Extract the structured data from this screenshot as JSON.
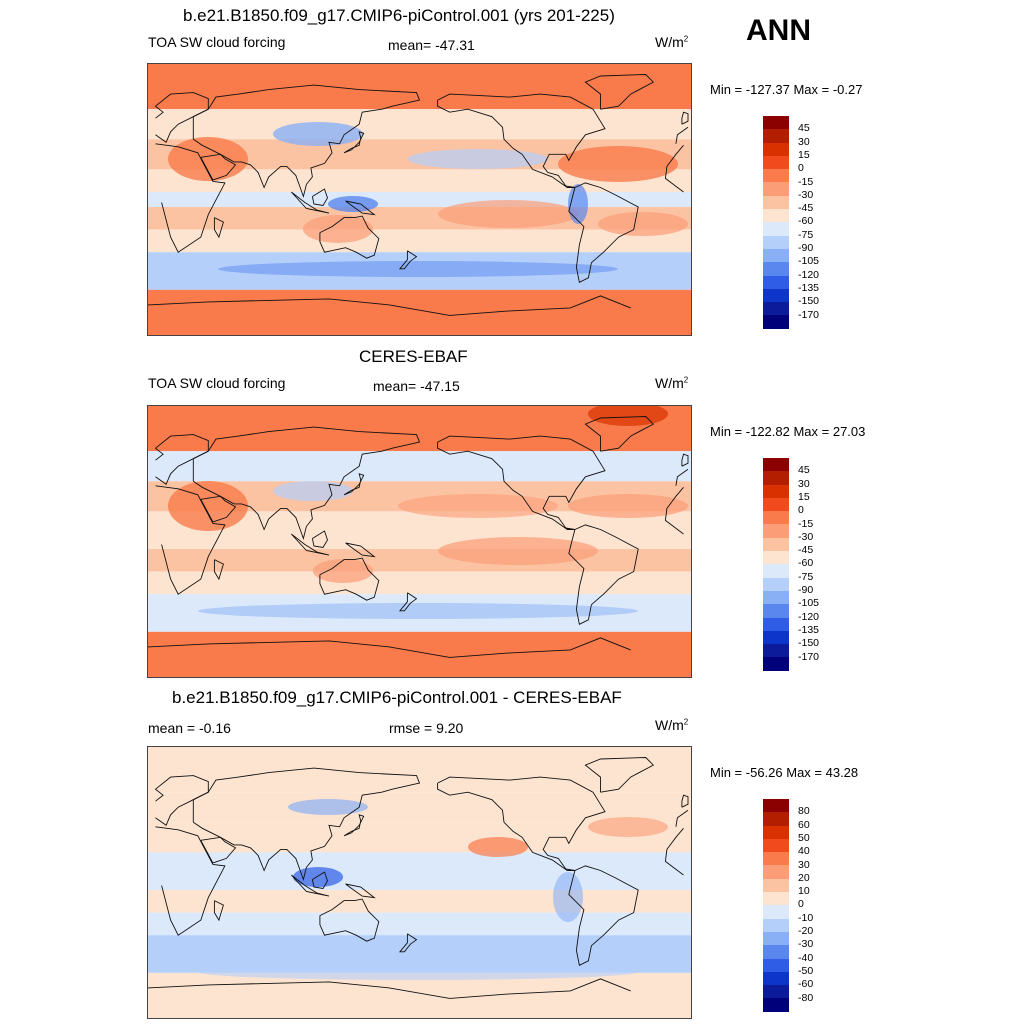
{
  "season": "ANN",
  "panels": [
    {
      "title": "b.e21.B1850.f09_g17.CMIP6-piControl.001 (yrs 201-225)",
      "left_label": "TOA SW cloud forcing",
      "center_label": "mean= -47.31",
      "units": "W/m",
      "units_sup": "2",
      "minmax": "Min = -127.37 Max =  -0.27",
      "colorbar_labels": [
        "45",
        "30",
        "15",
        "0",
        "-15",
        "-30",
        "-45",
        "-60",
        "-75",
        "-90",
        "-105",
        "-120",
        "-135",
        "-150",
        "-170"
      ]
    },
    {
      "title": "CERES-EBAF",
      "left_label": "TOA SW cloud forcing",
      "center_label": "mean= -47.15",
      "units": "W/m",
      "units_sup": "2",
      "minmax": "Min = -122.82 Max =  27.03",
      "colorbar_labels": [
        "45",
        "30",
        "15",
        "0",
        "-15",
        "-30",
        "-45",
        "-60",
        "-75",
        "-90",
        "-105",
        "-120",
        "-135",
        "-150",
        "-170"
      ]
    },
    {
      "title": "b.e21.B1850.f09_g17.CMIP6-piControl.001 - CERES-EBAF",
      "left_label": "mean =  -0.16",
      "center_label": "rmse =   9.20",
      "units": "W/m",
      "units_sup": "2",
      "minmax": "Min = -56.26 Max =  43.28",
      "colorbar_labels": [
        "80",
        "60",
        "50",
        "40",
        "30",
        "20",
        "10",
        "0",
        "-10",
        "-20",
        "-30",
        "-40",
        "-50",
        "-60",
        "-80"
      ]
    }
  ],
  "colorbar_colors": [
    "#8b0000",
    "#b31d00",
    "#d93200",
    "#f14a1c",
    "#f97a4a",
    "#fb9d76",
    "#fcc3a3",
    "#fde4d0",
    "#dbe9fb",
    "#b4cffa",
    "#89b0f5",
    "#5a87ee",
    "#2f5de6",
    "#0d35c9",
    "#0b1b9a",
    "#00007a"
  ],
  "chart_data": [
    {
      "type": "heatmap",
      "title": "b.e21.B1850.f09_g17.CMIP6-piControl.001 (yrs 201-225)",
      "variable": "TOA SW cloud forcing",
      "units": "W/m2",
      "mean": -47.31,
      "min": -127.37,
      "max": -0.27,
      "colorbar_levels": [
        45,
        30,
        15,
        0,
        -15,
        -30,
        -45,
        -60,
        -75,
        -90,
        -105,
        -120,
        -135,
        -150,
        -170
      ],
      "zonal_bands": [
        {
          "lat_range": [
            60,
            90
          ],
          "value": -10
        },
        {
          "lat_range": [
            40,
            60
          ],
          "value": -55
        },
        {
          "lat_range": [
            20,
            40
          ],
          "value": -35
        },
        {
          "lat_range": [
            5,
            20
          ],
          "value": -50
        },
        {
          "lat_range": [
            -5,
            5
          ],
          "value": -65
        },
        {
          "lat_range": [
            -20,
            -5
          ],
          "value": -40
        },
        {
          "lat_range": [
            -35,
            -20
          ],
          "value": -45
        },
        {
          "lat_range": [
            -60,
            -35
          ],
          "value": -85
        },
        {
          "lat_range": [
            -90,
            -60
          ],
          "value": -10
        }
      ]
    },
    {
      "type": "heatmap",
      "title": "CERES-EBAF",
      "variable": "TOA SW cloud forcing",
      "units": "W/m2",
      "mean": -47.15,
      "min": -122.82,
      "max": 27.03,
      "colorbar_levels": [
        45,
        30,
        15,
        0,
        -15,
        -30,
        -45,
        -60,
        -75,
        -90,
        -105,
        -120,
        -135,
        -150,
        -170
      ],
      "zonal_bands": [
        {
          "lat_range": [
            60,
            90
          ],
          "value": -10
        },
        {
          "lat_range": [
            40,
            60
          ],
          "value": -60
        },
        {
          "lat_range": [
            20,
            40
          ],
          "value": -35
        },
        {
          "lat_range": [
            5,
            20
          ],
          "value": -45
        },
        {
          "lat_range": [
            -5,
            5
          ],
          "value": -55
        },
        {
          "lat_range": [
            -20,
            -5
          ],
          "value": -40
        },
        {
          "lat_range": [
            -35,
            -20
          ],
          "value": -45
        },
        {
          "lat_range": [
            -60,
            -35
          ],
          "value": -70
        },
        {
          "lat_range": [
            -90,
            -60
          ],
          "value": -10
        }
      ]
    },
    {
      "type": "heatmap",
      "title": "b.e21.B1850.f09_g17.CMIP6-piControl.001 - CERES-EBAF",
      "variable": "difference",
      "units": "W/m2",
      "mean": -0.16,
      "rmse": 9.2,
      "min": -56.26,
      "max": 43.28,
      "colorbar_levels": [
        80,
        60,
        50,
        40,
        30,
        20,
        10,
        0,
        -10,
        -20,
        -30,
        -40,
        -50,
        -60,
        -80
      ],
      "zonal_bands": [
        {
          "lat_range": [
            60,
            90
          ],
          "value": 5
        },
        {
          "lat_range": [
            40,
            60
          ],
          "value": 5
        },
        {
          "lat_range": [
            20,
            40
          ],
          "value": 5
        },
        {
          "lat_range": [
            5,
            20
          ],
          "value": -5
        },
        {
          "lat_range": [
            -5,
            5
          ],
          "value": -5
        },
        {
          "lat_range": [
            -20,
            -5
          ],
          "value": 5
        },
        {
          "lat_range": [
            -35,
            -20
          ],
          "value": -5
        },
        {
          "lat_range": [
            -60,
            -35
          ],
          "value": -10
        },
        {
          "lat_range": [
            -90,
            -60
          ],
          "value": 5
        }
      ]
    }
  ]
}
